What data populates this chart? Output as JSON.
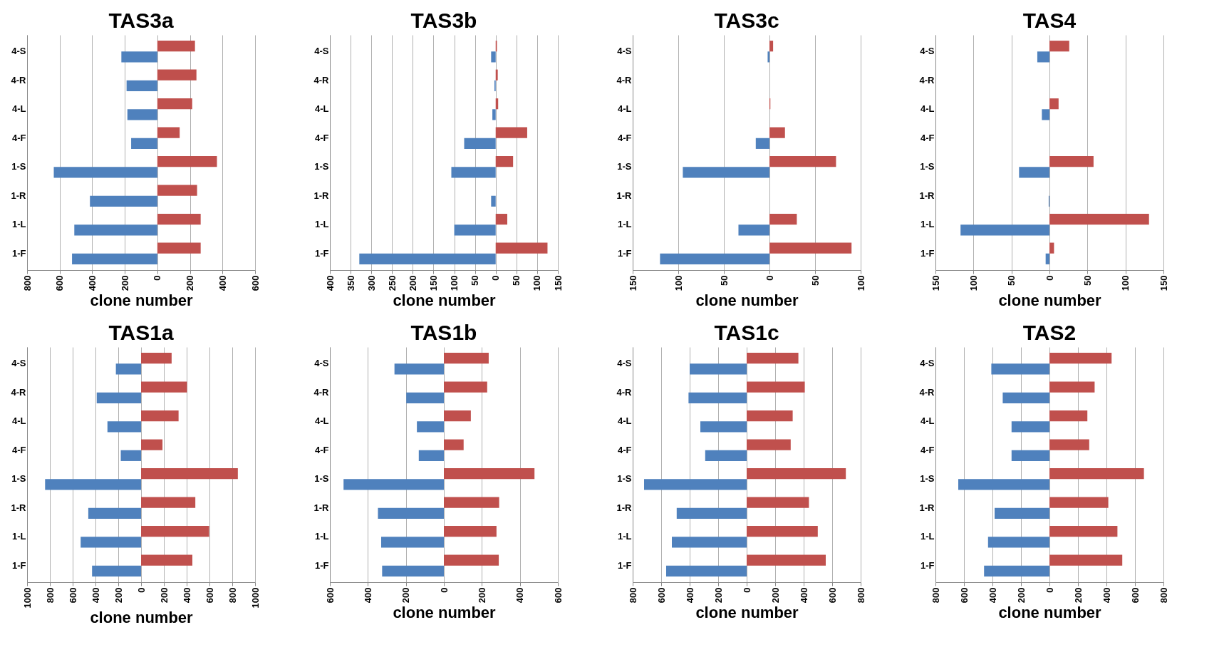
{
  "chart_data": [
    {
      "type": "bar",
      "orientation": "horizontal",
      "title": "TAS3a",
      "xlabel": "clone number",
      "grid": "x",
      "categories": [
        "4-S",
        "4-R",
        "4-L",
        "4-F",
        "1-S",
        "1-R",
        "1-L",
        "1-F"
      ],
      "xlim": [
        -800,
        600
      ],
      "xticks": [
        {
          "value": -800,
          "label": "800"
        },
        {
          "value": -600,
          "label": "600"
        },
        {
          "value": -400,
          "label": "400"
        },
        {
          "value": -200,
          "label": "200"
        },
        0,
        200,
        400,
        600
      ],
      "series": [
        {
          "color": "#c0504d",
          "values": [
            231,
            240,
            214,
            137,
            366,
            244,
            266,
            266
          ]
        },
        {
          "color": "#4f81bd",
          "values": [
            -221,
            -189,
            -184,
            -161,
            -636,
            -414,
            -510,
            -524
          ]
        }
      ]
    },
    {
      "type": "bar",
      "orientation": "horizontal",
      "title": "TAS3b",
      "xlabel": "clone number",
      "grid": "x",
      "categories": [
        "4-S",
        "4-R",
        "4-L",
        "4-F",
        "1-S",
        "1-R",
        "1-L",
        "1-F"
      ],
      "xlim": [
        -400,
        150
      ],
      "xticks": [
        {
          "value": -400,
          "label": "400"
        },
        {
          "value": -350,
          "label": "350"
        },
        {
          "value": -300,
          "label": "300"
        },
        {
          "value": -250,
          "label": "250"
        },
        {
          "value": -200,
          "label": "200"
        },
        {
          "value": -150,
          "label": "150"
        },
        {
          "value": -100,
          "label": "100"
        },
        {
          "value": -50,
          "label": "50"
        },
        0,
        50,
        100,
        150
      ],
      "series": [
        {
          "color": "#c0504d",
          "values": [
            3,
            5,
            6,
            76,
            42,
            0,
            28,
            125
          ]
        },
        {
          "color": "#4f81bd",
          "values": [
            -11,
            -3,
            -8,
            -76,
            -107,
            -11,
            -100,
            -329
          ]
        }
      ]
    },
    {
      "type": "bar",
      "orientation": "horizontal",
      "title": "TAS3c",
      "xlabel": "clone number",
      "grid": "x",
      "categories": [
        "4-S",
        "4-R",
        "4-L",
        "4-F",
        "1-S",
        "1-R",
        "1-L",
        "1-F"
      ],
      "xlim": [
        -150,
        100
      ],
      "xticks": [
        {
          "value": -150,
          "label": "150"
        },
        {
          "value": -100,
          "label": "100"
        },
        {
          "value": -50,
          "label": "50"
        },
        0,
        50,
        100
      ],
      "series": [
        {
          "color": "#c0504d",
          "values": [
            4,
            0,
            1,
            17,
            73,
            0,
            30,
            90
          ]
        },
        {
          "color": "#4f81bd",
          "values": [
            -2,
            0,
            0,
            -15,
            -95,
            0,
            -34,
            -120
          ]
        }
      ]
    },
    {
      "type": "bar",
      "orientation": "horizontal",
      "title": "TAS4",
      "xlabel": "clone number",
      "grid": "x",
      "categories": [
        "4-S",
        "4-R",
        "4-L",
        "4-F",
        "1-S",
        "1-R",
        "1-L",
        "1-F"
      ],
      "xlim": [
        -150,
        150
      ],
      "xticks": [
        {
          "value": -150,
          "label": "150"
        },
        {
          "value": -100,
          "label": "100"
        },
        {
          "value": -50,
          "label": "50"
        },
        0,
        50,
        100,
        150
      ],
      "series": [
        {
          "color": "#c0504d",
          "values": [
            26,
            0,
            12,
            0,
            58,
            0,
            131,
            6
          ]
        },
        {
          "color": "#4f81bd",
          "values": [
            -16,
            0,
            -10,
            0,
            -40,
            -1,
            -117,
            -5
          ]
        }
      ]
    },
    {
      "type": "bar",
      "orientation": "horizontal",
      "title": "TAS1a",
      "xlabel": "clone number",
      "grid": "x",
      "categories": [
        "4-S",
        "4-R",
        "4-L",
        "4-F",
        "1-S",
        "1-R",
        "1-L",
        "1-F"
      ],
      "xlim": [
        -1000,
        1000
      ],
      "xticks": [
        {
          "value": -1000,
          "label": "1000"
        },
        {
          "value": -800,
          "label": "800"
        },
        {
          "value": -600,
          "label": "600"
        },
        {
          "value": -400,
          "label": "400"
        },
        {
          "value": -200,
          "label": "200"
        },
        0,
        200,
        400,
        600,
        800,
        1000
      ],
      "series": [
        {
          "color": "#c0504d",
          "values": [
            268,
            403,
            329,
            188,
            849,
            476,
            597,
            450
          ]
        },
        {
          "color": "#4f81bd",
          "values": [
            -221,
            -389,
            -295,
            -178,
            -842,
            -463,
            -530,
            -430
          ]
        }
      ]
    },
    {
      "type": "bar",
      "orientation": "horizontal",
      "title": "TAS1b",
      "xlabel": "clone number",
      "grid": "x",
      "categories": [
        "4-S",
        "4-R",
        "4-L",
        "4-F",
        "1-S",
        "1-R",
        "1-L",
        "1-F"
      ],
      "xlim": [
        -600,
        600
      ],
      "xticks": [
        {
          "value": -600,
          "label": "600"
        },
        {
          "value": -400,
          "label": "400"
        },
        {
          "value": -200,
          "label": "200"
        },
        0,
        200,
        400,
        600
      ],
      "series": [
        {
          "color": "#c0504d",
          "values": [
            236,
            228,
            142,
            104,
            477,
            291,
            277,
            289
          ]
        },
        {
          "color": "#4f81bd",
          "values": [
            -260,
            -198,
            -142,
            -132,
            -528,
            -347,
            -330,
            -325
          ]
        }
      ]
    },
    {
      "type": "bar",
      "orientation": "horizontal",
      "title": "TAS1c",
      "xlabel": "clone number",
      "grid": "x",
      "categories": [
        "4-S",
        "4-R",
        "4-L",
        "4-F",
        "1-S",
        "1-R",
        "1-L",
        "1-F"
      ],
      "xlim": [
        -800,
        800
      ],
      "xticks": [
        {
          "value": -800,
          "label": "800"
        },
        {
          "value": -600,
          "label": "600"
        },
        {
          "value": -400,
          "label": "400"
        },
        {
          "value": -200,
          "label": "200"
        },
        0,
        200,
        400,
        600,
        800
      ],
      "series": [
        {
          "color": "#c0504d",
          "values": [
            363,
            408,
            323,
            309,
            696,
            437,
            499,
            555
          ]
        },
        {
          "color": "#4f81bd",
          "values": [
            -400,
            -408,
            -325,
            -291,
            -720,
            -491,
            -525,
            -565
          ]
        }
      ]
    },
    {
      "type": "bar",
      "orientation": "horizontal",
      "title": "TAS2",
      "xlabel": "clone number",
      "grid": "x",
      "categories": [
        "4-S",
        "4-R",
        "4-L",
        "4-F",
        "1-S",
        "1-R",
        "1-L",
        "1-F"
      ],
      "xlim": [
        -800,
        800
      ],
      "xticks": [
        {
          "value": -800,
          "label": "800"
        },
        {
          "value": -600,
          "label": "600"
        },
        {
          "value": -400,
          "label": "400"
        },
        {
          "value": -200,
          "label": "200"
        },
        0,
        200,
        400,
        600,
        800
      ],
      "series": [
        {
          "color": "#c0504d",
          "values": [
            436,
            317,
            266,
            279,
            663,
            413,
            477,
            511
          ]
        },
        {
          "color": "#4f81bd",
          "values": [
            -408,
            -328,
            -266,
            -266,
            -640,
            -385,
            -431,
            -459
          ]
        }
      ]
    }
  ]
}
